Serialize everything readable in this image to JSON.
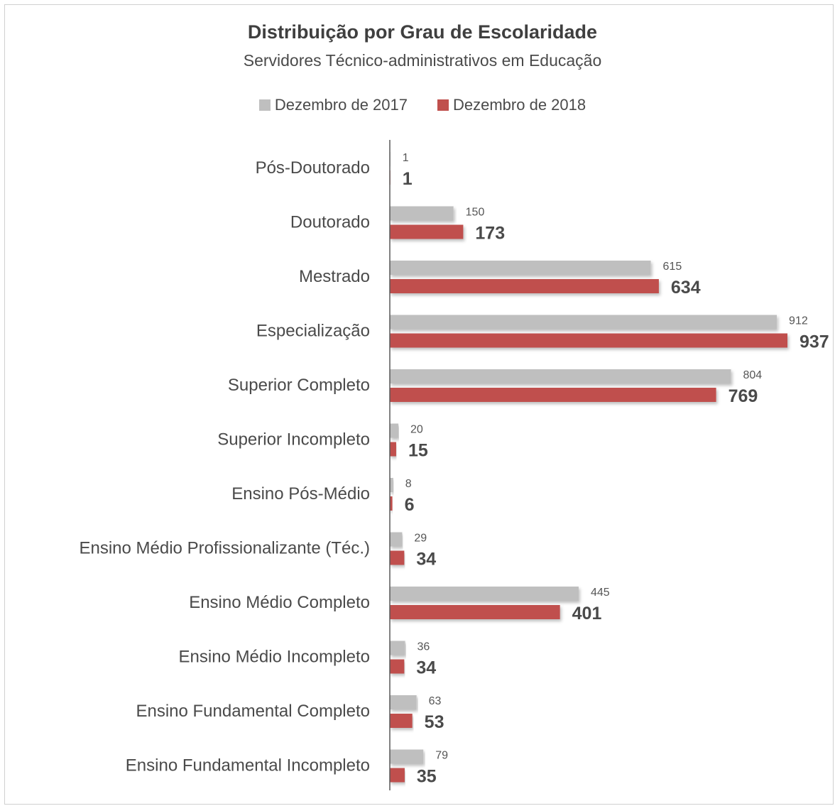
{
  "chart_data": {
    "type": "bar",
    "orientation": "horizontal",
    "title": "Distribuição por Grau de Escolaridade",
    "subtitle": "Servidores Técnico-administrativos em Educação",
    "legend_position": "top",
    "grid": false,
    "xlim": [
      0,
      937
    ],
    "categories": [
      "Pós-Doutorado",
      "Doutorado",
      "Mestrado",
      "Especialização",
      "Superior Completo",
      "Superior Incompleto",
      "Ensino Pós-Médio",
      "Ensino Médio Profissionalizante (Téc.)",
      "Ensino Médio Completo",
      "Ensino Médio Incompleto",
      "Ensino Fundamental Completo",
      "Ensino Fundamental Incompleto"
    ],
    "series": [
      {
        "name": "Dezembro de 2017",
        "color": "#bfbfbf",
        "values": [
          1,
          150,
          615,
          912,
          804,
          20,
          8,
          29,
          445,
          36,
          63,
          79
        ]
      },
      {
        "name": "Dezembro de 2018",
        "color": "#c0504d",
        "values": [
          1,
          173,
          634,
          937,
          769,
          15,
          6,
          34,
          401,
          34,
          53,
          35
        ]
      }
    ]
  }
}
